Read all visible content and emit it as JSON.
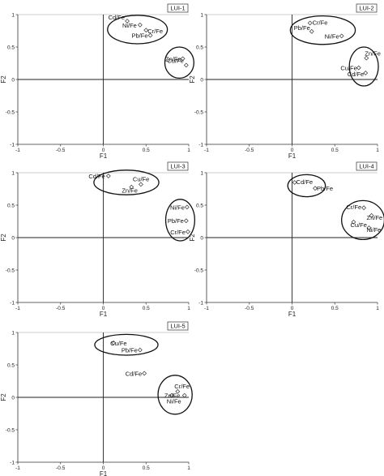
{
  "chart_data": [
    {
      "type": "scatter",
      "title": "LUI-1",
      "xlabel": "F1",
      "ylabel": "F2",
      "xlim": [
        -1,
        1
      ],
      "ylim": [
        -1,
        1
      ],
      "xticks": [
        "-1",
        "-0.5",
        "0",
        "0.5",
        "1"
      ],
      "yticks": [
        "1",
        "0.5",
        "0",
        "-0.5",
        "-1"
      ],
      "points": [
        {
          "label": "Cd/Fe",
          "x": 0.28,
          "y": 0.9
        },
        {
          "label": "Ni/Fe",
          "x": 0.43,
          "y": 0.84
        },
        {
          "label": "Cr/Fe",
          "x": 0.5,
          "y": 0.76
        },
        {
          "label": "Pb/Fe",
          "x": 0.55,
          "y": 0.68
        },
        {
          "label": "Zn/Fe",
          "x": 0.93,
          "y": 0.32
        },
        {
          "label": "Cu/Fe",
          "x": 0.97,
          "y": 0.22
        }
      ]
    },
    {
      "type": "scatter",
      "title": "LUI-2",
      "xlabel": "F1",
      "ylabel": "F2",
      "xlim": [
        -1,
        1
      ],
      "ylim": [
        -1,
        1
      ],
      "xticks": [
        "-1",
        "-0.5",
        "0",
        "0.5",
        "1"
      ],
      "yticks": [
        "1",
        "0.5",
        "0",
        "-0.5",
        "-1"
      ],
      "points": [
        {
          "label": "Cr/Fe",
          "x": 0.21,
          "y": 0.87
        },
        {
          "label": "Pb/Fe",
          "x": 0.23,
          "y": 0.74
        },
        {
          "label": "Ni/Fe",
          "x": 0.58,
          "y": 0.67
        },
        {
          "label": "Zn/Fe",
          "x": 0.87,
          "y": 0.33
        },
        {
          "label": "Cu/Fe",
          "x": 0.78,
          "y": 0.18
        },
        {
          "label": "Cd/Fe",
          "x": 0.86,
          "y": 0.1
        }
      ]
    },
    {
      "type": "scatter",
      "title": "LUI-3",
      "xlabel": "F1",
      "ylabel": "F2",
      "xlim": [
        -1,
        1
      ],
      "ylim": [
        -1,
        1
      ],
      "xticks": [
        "-1",
        "-0.5",
        "0",
        "0.5",
        "1"
      ],
      "yticks": [
        "1",
        "0.5",
        "0",
        "-0.5",
        "-1"
      ],
      "points": [
        {
          "label": "Cd/Fe",
          "x": 0.06,
          "y": 0.95
        },
        {
          "label": "Cu/Fe",
          "x": 0.44,
          "y": 0.82
        },
        {
          "label": "Zn/Fe",
          "x": 0.33,
          "y": 0.78
        },
        {
          "label": "Ni/Fe",
          "x": 0.98,
          "y": 0.47
        },
        {
          "label": "Pb/Fe",
          "x": 0.97,
          "y": 0.26
        },
        {
          "label": "Cr/Fe",
          "x": 0.99,
          "y": 0.09
        }
      ]
    },
    {
      "type": "scatter",
      "title": "LUI-4",
      "xlabel": "F1",
      "ylabel": "F2",
      "xlim": [
        -1,
        1
      ],
      "ylim": [
        -1,
        1
      ],
      "xticks": [
        "-1",
        "-0.5",
        "0",
        "0.5",
        "1"
      ],
      "yticks": [
        "1",
        "0.5",
        "0",
        "-0.5",
        "-1"
      ],
      "points": [
        {
          "label": "Cd/Fe",
          "x": 0.03,
          "y": 0.85
        },
        {
          "label": "Pb/Fe",
          "x": 0.27,
          "y": 0.76
        },
        {
          "label": "Cr/Fe",
          "x": 0.84,
          "y": 0.46
        },
        {
          "label": "Zn/Fe",
          "x": 0.93,
          "y": 0.34
        },
        {
          "label": "Cu/Fe",
          "x": 0.72,
          "y": 0.24
        },
        {
          "label": "Ni/Fe",
          "x": 0.9,
          "y": 0.15
        }
      ]
    },
    {
      "type": "scatter",
      "title": "LUI-5",
      "xlabel": "F1",
      "ylabel": "F2",
      "xlim": [
        -1,
        1
      ],
      "ylim": [
        -1,
        1
      ],
      "xticks": [
        "-1",
        "-0.5",
        "0",
        "0.5",
        "1"
      ],
      "yticks": [
        "1",
        "0.5",
        "0",
        "-0.5",
        "-1"
      ],
      "points": [
        {
          "label": "Cu/Fe",
          "x": 0.12,
          "y": 0.84
        },
        {
          "label": "Pb/Fe",
          "x": 0.43,
          "y": 0.73
        },
        {
          "label": "Cd/Fe",
          "x": 0.48,
          "y": 0.37
        },
        {
          "label": "Cr/Fe",
          "x": 0.87,
          "y": 0.09
        },
        {
          "label": "Zn/Fe",
          "x": 0.8,
          "y": 0.03
        },
        {
          "label": "Ni/Fe",
          "x": 0.95,
          "y": 0.03
        }
      ]
    }
  ]
}
